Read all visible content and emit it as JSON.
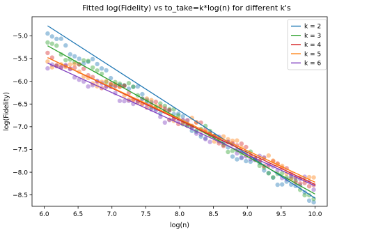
{
  "chart_data": {
    "type": "scatter",
    "title": "Fitted log(Fidelity) vs to_take=k*log(n) for different k's",
    "xlabel": "log(n)",
    "ylabel": "log(Fidelity)",
    "xlim": [
      5.82,
      10.18
    ],
    "ylim": [
      -8.75,
      -4.58
    ],
    "xticks": [
      "6.0",
      "6.5",
      "7.0",
      "7.5",
      "8.0",
      "8.5",
      "9.0",
      "9.5",
      "10.0"
    ],
    "yticks": [
      "-5.0",
      "-5.5",
      "-6.0",
      "-6.5",
      "-7.0",
      "-7.5",
      "-8.0",
      "-8.5"
    ],
    "legend_position": "top-right",
    "grid": false,
    "x_points": {
      "start": 6.05,
      "end": 9.98,
      "count": 60
    },
    "series": [
      {
        "name": "k = 2",
        "color": "#1f77b4",
        "fit_line": [
          [
            6.05,
            -4.78
          ],
          [
            10.0,
            -8.57
          ]
        ],
        "scatter_start_y": -5.0
      },
      {
        "name": "k = 3",
        "color": "#2ca02c",
        "fit_line": [
          [
            6.05,
            -5.22
          ],
          [
            10.0,
            -8.48
          ]
        ],
        "scatter_start_y": -5.2
      },
      {
        "name": "k = 4",
        "color": "#d62728",
        "fit_line": [
          [
            6.05,
            -5.48
          ],
          [
            10.0,
            -8.27
          ]
        ],
        "scatter_start_y": -5.45
      },
      {
        "name": "k = 5",
        "color": "#ff7f0e",
        "fit_line": [
          [
            6.05,
            -5.48
          ],
          [
            10.0,
            -8.22
          ]
        ],
        "scatter_start_y": -5.5
      },
      {
        "name": "k = 6",
        "color": "#7f3fbf",
        "fit_line": [
          [
            6.05,
            -5.6
          ],
          [
            10.0,
            -8.3
          ]
        ],
        "scatter_start_y": -5.6
      }
    ]
  }
}
